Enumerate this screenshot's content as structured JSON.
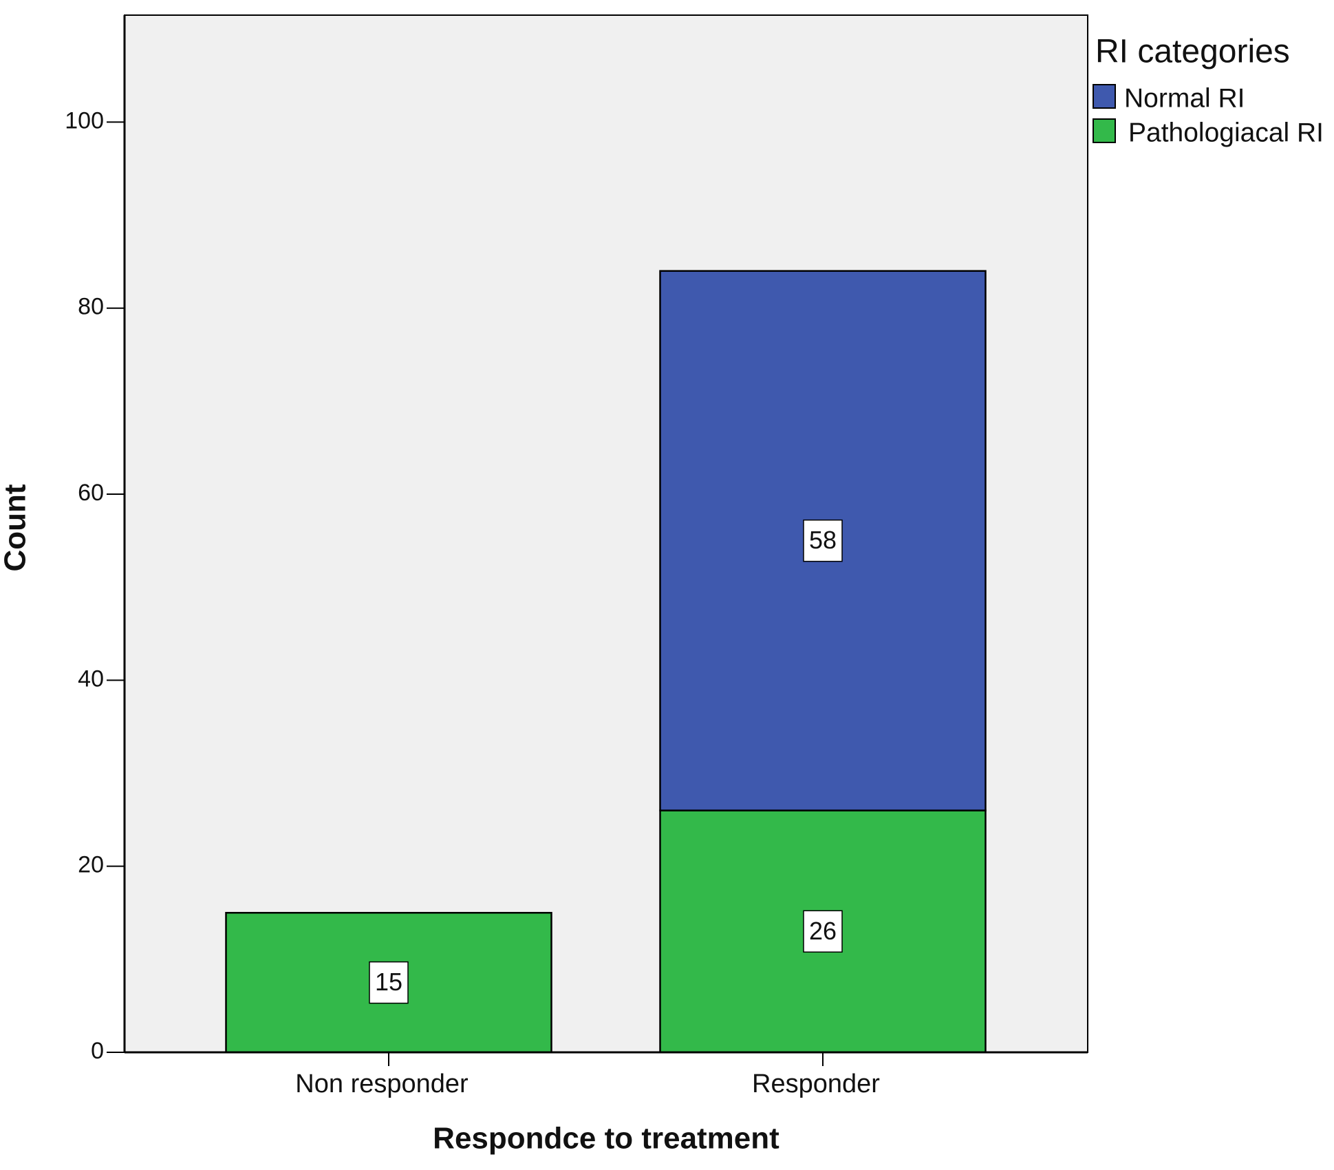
{
  "chart_data": {
    "type": "stacked_bar",
    "x_label": "Respondce to treatment",
    "y_label": "Count",
    "legend_title": "RI categories",
    "categories": [
      "Non responder",
      "Responder"
    ],
    "series": [
      {
        "name": "Pathologiacal RI",
        "color": "#33b94a",
        "values": [
          15,
          26
        ]
      },
      {
        "name": "Normal RI",
        "color": "#3f59ae",
        "values": [
          null,
          58
        ]
      }
    ],
    "ylim": [
      0,
      111.5
    ],
    "yticks": [
      0,
      20,
      40,
      60,
      80,
      100
    ]
  }
}
